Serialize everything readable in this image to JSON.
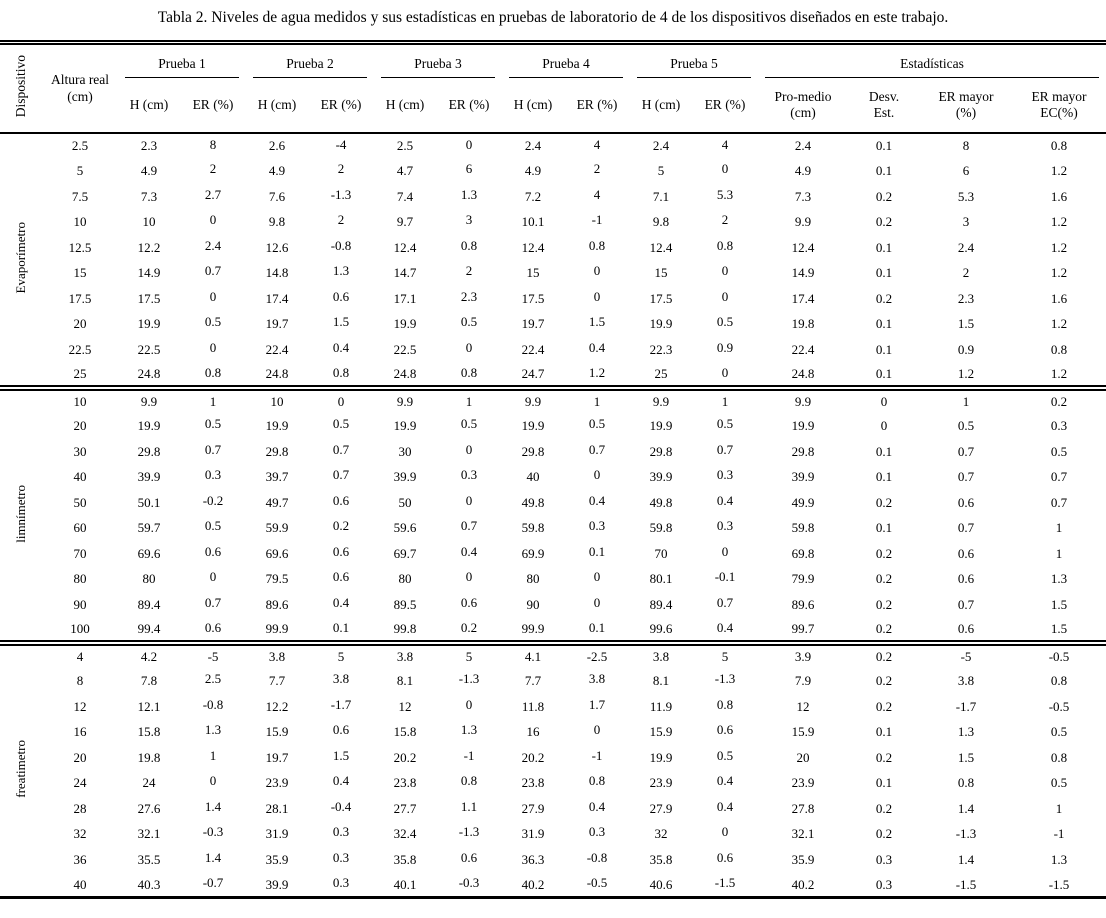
{
  "title": "Tabla 2. Niveles de agua medidos y sus estadísticas en pruebas de laboratorio de 4 de los dispositivos diseñados en este trabajo.",
  "table": {
    "headers": {
      "dispositivo": "Dispositivo",
      "altura_real": "Altura real (cm)",
      "pruebas": [
        "Prueba 1",
        "Prueba 2",
        "Prueba 3",
        "Prueba 4",
        "Prueba 5"
      ],
      "h_cm": "H (cm)",
      "er_pct": "ER (%)",
      "estadisticas": "Estadísticas",
      "stats_cols": [
        "Pro-medio (cm)",
        "Desv. Est.",
        "ER mayor (%)",
        "ER mayor EC(%)"
      ]
    },
    "sections": [
      {
        "device": "Evaporímetro",
        "rows": [
          [
            "2.5",
            "2.3",
            "8",
            "2.6",
            "-4",
            "2.5",
            "0",
            "2.4",
            "4",
            "2.4",
            "4",
            "2.4",
            "0.1",
            "8",
            "0.8"
          ],
          [
            "5",
            "4.9",
            "2",
            "4.9",
            "2",
            "4.7",
            "6",
            "4.9",
            "2",
            "5",
            "0",
            "4.9",
            "0.1",
            "6",
            "1.2"
          ],
          [
            "7.5",
            "7.3",
            "2.7",
            "7.6",
            "-1.3",
            "7.4",
            "1.3",
            "7.2",
            "4",
            "7.1",
            "5.3",
            "7.3",
            "0.2",
            "5.3",
            "1.6"
          ],
          [
            "10",
            "10",
            "0",
            "9.8",
            "2",
            "9.7",
            "3",
            "10.1",
            "-1",
            "9.8",
            "2",
            "9.9",
            "0.2",
            "3",
            "1.2"
          ],
          [
            "12.5",
            "12.2",
            "2.4",
            "12.6",
            "-0.8",
            "12.4",
            "0.8",
            "12.4",
            "0.8",
            "12.4",
            "0.8",
            "12.4",
            "0.1",
            "2.4",
            "1.2"
          ],
          [
            "15",
            "14.9",
            "0.7",
            "14.8",
            "1.3",
            "14.7",
            "2",
            "15",
            "0",
            "15",
            "0",
            "14.9",
            "0.1",
            "2",
            "1.2"
          ],
          [
            "17.5",
            "17.5",
            "0",
            "17.4",
            "0.6",
            "17.1",
            "2.3",
            "17.5",
            "0",
            "17.5",
            "0",
            "17.4",
            "0.2",
            "2.3",
            "1.6"
          ],
          [
            "20",
            "19.9",
            "0.5",
            "19.7",
            "1.5",
            "19.9",
            "0.5",
            "19.7",
            "1.5",
            "19.9",
            "0.5",
            "19.8",
            "0.1",
            "1.5",
            "1.2"
          ],
          [
            "22.5",
            "22.5",
            "0",
            "22.4",
            "0.4",
            "22.5",
            "0",
            "22.4",
            "0.4",
            "22.3",
            "0.9",
            "22.4",
            "0.1",
            "0.9",
            "0.8"
          ],
          [
            "25",
            "24.8",
            "0.8",
            "24.8",
            "0.8",
            "24.8",
            "0.8",
            "24.7",
            "1.2",
            "25",
            "0",
            "24.8",
            "0.1",
            "1.2",
            "1.2"
          ]
        ]
      },
      {
        "device": "limnímetro",
        "rows": [
          [
            "10",
            "9.9",
            "1",
            "10",
            "0",
            "9.9",
            "1",
            "9.9",
            "1",
            "9.9",
            "1",
            "9.9",
            "0",
            "1",
            "0.2"
          ],
          [
            "20",
            "19.9",
            "0.5",
            "19.9",
            "0.5",
            "19.9",
            "0.5",
            "19.9",
            "0.5",
            "19.9",
            "0.5",
            "19.9",
            "0",
            "0.5",
            "0.3"
          ],
          [
            "30",
            "29.8",
            "0.7",
            "29.8",
            "0.7",
            "30",
            "0",
            "29.8",
            "0.7",
            "29.8",
            "0.7",
            "29.8",
            "0.1",
            "0.7",
            "0.5"
          ],
          [
            "40",
            "39.9",
            "0.3",
            "39.7",
            "0.7",
            "39.9",
            "0.3",
            "40",
            "0",
            "39.9",
            "0.3",
            "39.9",
            "0.1",
            "0.7",
            "0.7"
          ],
          [
            "50",
            "50.1",
            "-0.2",
            "49.7",
            "0.6",
            "50",
            "0",
            "49.8",
            "0.4",
            "49.8",
            "0.4",
            "49.9",
            "0.2",
            "0.6",
            "0.7"
          ],
          [
            "60",
            "59.7",
            "0.5",
            "59.9",
            "0.2",
            "59.6",
            "0.7",
            "59.8",
            "0.3",
            "59.8",
            "0.3",
            "59.8",
            "0.1",
            "0.7",
            "1"
          ],
          [
            "70",
            "69.6",
            "0.6",
            "69.6",
            "0.6",
            "69.7",
            "0.4",
            "69.9",
            "0.1",
            "70",
            "0",
            "69.8",
            "0.2",
            "0.6",
            "1"
          ],
          [
            "80",
            "80",
            "0",
            "79.5",
            "0.6",
            "80",
            "0",
            "80",
            "0",
            "80.1",
            "-0.1",
            "79.9",
            "0.2",
            "0.6",
            "1.3"
          ],
          [
            "90",
            "89.4",
            "0.7",
            "89.6",
            "0.4",
            "89.5",
            "0.6",
            "90",
            "0",
            "89.4",
            "0.7",
            "89.6",
            "0.2",
            "0.7",
            "1.5"
          ],
          [
            "100",
            "99.4",
            "0.6",
            "99.9",
            "0.1",
            "99.8",
            "0.2",
            "99.9",
            "0.1",
            "99.6",
            "0.4",
            "99.7",
            "0.2",
            "0.6",
            "1.5"
          ]
        ]
      },
      {
        "device": "freatimetro",
        "rows": [
          [
            "4",
            "4.2",
            "-5",
            "3.8",
            "5",
            "3.8",
            "5",
            "4.1",
            "-2.5",
            "3.8",
            "5",
            "3.9",
            "0.2",
            "-5",
            "-0.5"
          ],
          [
            "8",
            "7.8",
            "2.5",
            "7.7",
            "3.8",
            "8.1",
            "-1.3",
            "7.7",
            "3.8",
            "8.1",
            "-1.3",
            "7.9",
            "0.2",
            "3.8",
            "0.8"
          ],
          [
            "12",
            "12.1",
            "-0.8",
            "12.2",
            "-1.7",
            "12",
            "0",
            "11.8",
            "1.7",
            "11.9",
            "0.8",
            "12",
            "0.2",
            "-1.7",
            "-0.5"
          ],
          [
            "16",
            "15.8",
            "1.3",
            "15.9",
            "0.6",
            "15.8",
            "1.3",
            "16",
            "0",
            "15.9",
            "0.6",
            "15.9",
            "0.1",
            "1.3",
            "0.5"
          ],
          [
            "20",
            "19.8",
            "1",
            "19.7",
            "1.5",
            "20.2",
            "-1",
            "20.2",
            "-1",
            "19.9",
            "0.5",
            "20",
            "0.2",
            "1.5",
            "0.8"
          ],
          [
            "24",
            "24",
            "0",
            "23.9",
            "0.4",
            "23.8",
            "0.8",
            "23.8",
            "0.8",
            "23.9",
            "0.4",
            "23.9",
            "0.1",
            "0.8",
            "0.5"
          ],
          [
            "28",
            "27.6",
            "1.4",
            "28.1",
            "-0.4",
            "27.7",
            "1.1",
            "27.9",
            "0.4",
            "27.9",
            "0.4",
            "27.8",
            "0.2",
            "1.4",
            "1"
          ],
          [
            "32",
            "32.1",
            "-0.3",
            "31.9",
            "0.3",
            "32.4",
            "-1.3",
            "31.9",
            "0.3",
            "32",
            "0",
            "32.1",
            "0.2",
            "-1.3",
            "-1"
          ],
          [
            "36",
            "35.5",
            "1.4",
            "35.9",
            "0.3",
            "35.8",
            "0.6",
            "36.3",
            "-0.8",
            "35.8",
            "0.6",
            "35.9",
            "0.3",
            "1.4",
            "1.3"
          ],
          [
            "40",
            "40.3",
            "-0.7",
            "39.9",
            "0.3",
            "40.1",
            "-0.3",
            "40.2",
            "-0.5",
            "40.6",
            "-1.5",
            "40.2",
            "0.3",
            "-1.5",
            "-1.5"
          ]
        ]
      }
    ]
  }
}
